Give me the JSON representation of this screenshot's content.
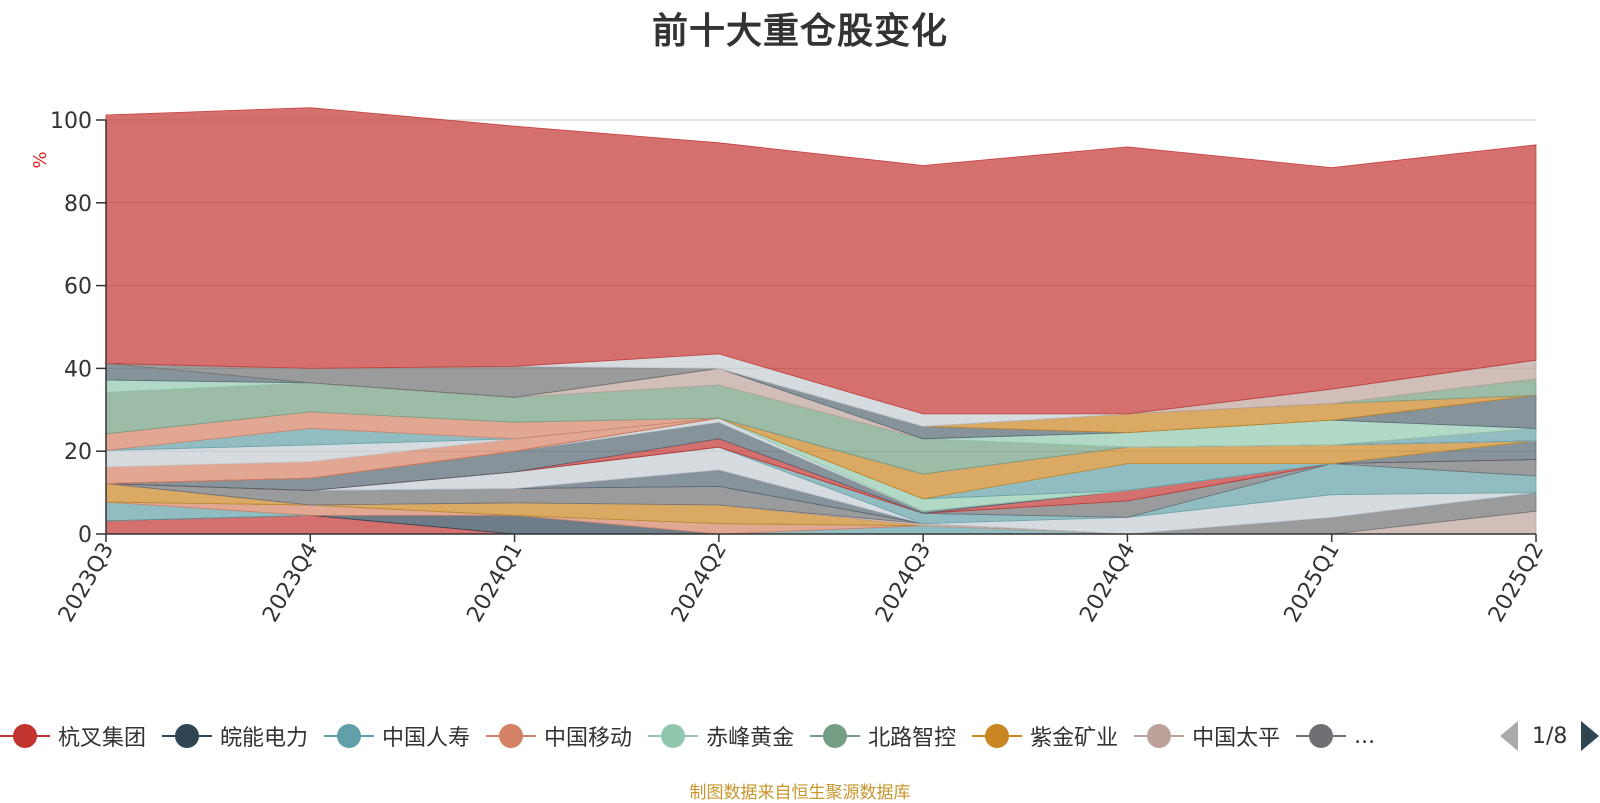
{
  "chart_data": {
    "type": "area",
    "title": "前十大重仓股变化",
    "ylabel": "%",
    "ylim": [
      0,
      100
    ],
    "yticks": [
      0,
      20,
      40,
      60,
      80,
      100
    ],
    "grid": true,
    "stacked": true,
    "legend_position": "bottom",
    "x": [
      "2023Q3",
      "2023Q4",
      "2024Q1",
      "2024Q2",
      "2024Q3",
      "2024Q4",
      "2025Q1",
      "2025Q2"
    ],
    "series": [
      {
        "name": "杭叉集团",
        "color": "#c23531",
        "values": [
          3.2,
          4.5,
          0.0,
          0.0,
          0.0,
          0.0,
          0.0,
          0.0
        ]
      },
      {
        "name": "皖能电力",
        "color": "#2f4554",
        "values": [
          0.0,
          0.0,
          4.5,
          0.0,
          0.0,
          0.0,
          0.0,
          0.0
        ]
      },
      {
        "name": "中国人寿",
        "color": "#61a0a8",
        "values": [
          4.5,
          0.0,
          0.0,
          0.0,
          2.0,
          0.0,
          0.0,
          0.0
        ]
      },
      {
        "name": "中国移动",
        "color": "#d48265",
        "values": [
          0.0,
          2.5,
          0.0,
          2.5,
          0.0,
          0.0,
          0.0,
          0.0
        ]
      },
      {
        "name": "赤峰黄金",
        "color": "#91c7ae",
        "values": [
          0.0,
          0.0,
          0.0,
          0.0,
          0.0,
          0.0,
          0.0,
          0.0
        ]
      },
      {
        "name": "北路智控",
        "color": "#749f83",
        "values": [
          0.0,
          0.0,
          0.0,
          0.0,
          0.0,
          0.0,
          0.0,
          0.0
        ]
      },
      {
        "name": "紫金矿业",
        "color": "#ca8622",
        "values": [
          4.5,
          0.0,
          3.0,
          4.5,
          0.0,
          0.0,
          0.0,
          0.0
        ]
      },
      {
        "name": "中国太平",
        "color": "#bda29a",
        "values": [
          0.0,
          0.0,
          0.0,
          0.0,
          0.5,
          0.0,
          0.0,
          5.5
        ]
      },
      {
        "name": "",
        "color": "#6e7074",
        "values": [
          0.0,
          3.5,
          3.5,
          4.5,
          0.0,
          0.0,
          4.0,
          4.5
        ]
      },
      {
        "name": "",
        "color": "#546570",
        "values": [
          0.0,
          0.0,
          0.0,
          4.0,
          0.0,
          0.0,
          0.0,
          0.0
        ]
      },
      {
        "name": "",
        "color": "#c4ccd3",
        "values": [
          0.0,
          0.0,
          4.0,
          5.5,
          0.0,
          4.0,
          5.5,
          0.0
        ]
      },
      {
        "name": "",
        "color": "#61a0a8",
        "values": [
          0.0,
          0.0,
          0.0,
          0.0,
          2.5,
          0.0,
          7.5,
          4.0
        ]
      },
      {
        "name": "",
        "color": "#6e7074",
        "values": [
          0.0,
          0.0,
          0.0,
          0.0,
          0.0,
          4.0,
          0.0,
          4.0
        ]
      },
      {
        "name": "",
        "color": "#c23531",
        "values": [
          0.0,
          0.0,
          0.0,
          2.0,
          0.0,
          2.5,
          0.0,
          0.0
        ]
      },
      {
        "name": "",
        "color": "#546570",
        "values": [
          0.0,
          3.0,
          5.0,
          4.0,
          0.5,
          0.0,
          0.0,
          4.5
        ]
      },
      {
        "name": "",
        "color": "#c4ccd3",
        "values": [
          0.0,
          0.0,
          0.0,
          1.0,
          0.0,
          0.0,
          0.0,
          0.0
        ]
      },
      {
        "name": "",
        "color": "#91c7ae",
        "values": [
          0.0,
          0.0,
          0.0,
          0.0,
          3.0,
          0.0,
          0.0,
          0.0
        ]
      },
      {
        "name": "",
        "color": "#61a0a8",
        "values": [
          0.0,
          0.0,
          0.0,
          0.0,
          0.0,
          6.5,
          0.0,
          0.0
        ]
      },
      {
        "name": "",
        "color": "#ca8622",
        "values": [
          0.0,
          0.0,
          0.0,
          0.0,
          6.0,
          4.0,
          4.5,
          0.0
        ]
      },
      {
        "name": "",
        "color": "#c23531",
        "values": [
          0.0,
          0.0,
          0.0,
          0.0,
          0.0,
          0.0,
          0.0,
          0.0
        ]
      },
      {
        "name": "",
        "color": "#d48265",
        "values": [
          4.0,
          4.0,
          3.0,
          0.0,
          0.0,
          0.0,
          0.0,
          0.0
        ]
      },
      {
        "name": "",
        "color": "#c4ccd3",
        "values": [
          4.0,
          4.0,
          0.0,
          0.0,
          0.0,
          0.0,
          0.0,
          0.0
        ]
      },
      {
        "name": "",
        "color": "#61a0a8",
        "values": [
          0.0,
          4.0,
          0.0,
          0.0,
          0.0,
          0.0,
          0.0,
          3.0
        ]
      },
      {
        "name": "",
        "color": "#d48265",
        "values": [
          4.0,
          4.0,
          4.0,
          0.0,
          0.0,
          0.0,
          0.0,
          0.0
        ]
      },
      {
        "name": "",
        "color": "#749f83",
        "values": [
          10.0,
          7.0,
          6.0,
          8.0,
          8.5,
          0.0,
          0.0,
          0.0
        ]
      },
      {
        "name": "",
        "color": "#bda29a",
        "values": [
          0.0,
          0.0,
          0.0,
          4.0,
          0.0,
          0.0,
          0.0,
          0.0
        ]
      },
      {
        "name": "",
        "color": "#91c7ae",
        "values": [
          3.0,
          0.0,
          0.0,
          0.0,
          0.0,
          3.5,
          6.0,
          0.0
        ]
      },
      {
        "name": "",
        "color": "#546570",
        "values": [
          4.0,
          0.0,
          0.0,
          0.0,
          3.0,
          0.0,
          0.0,
          8.0
        ]
      },
      {
        "name": "",
        "color": "#ca8622",
        "values": [
          0.0,
          0.0,
          0.0,
          0.0,
          0.0,
          4.5,
          4.0,
          0.0
        ]
      },
      {
        "name": "",
        "color": "#749f83",
        "values": [
          0.0,
          0.0,
          0.0,
          0.0,
          0.0,
          0.0,
          0.0,
          4.0
        ]
      },
      {
        "name": "",
        "color": "#bda29a",
        "values": [
          0.0,
          0.0,
          0.0,
          0.0,
          0.0,
          0.0,
          3.5,
          4.5
        ]
      },
      {
        "name": "",
        "color": "#6e7074",
        "values": [
          0.0,
          3.5,
          7.5,
          0.0,
          0.0,
          0.0,
          0.0,
          0.0
        ]
      },
      {
        "name": "",
        "color": "#c4ccd3",
        "values": [
          0.0,
          0.0,
          0.0,
          3.5,
          3.0,
          0.0,
          0.0,
          0.0
        ]
      },
      {
        "name": "",
        "color": "#c23531",
        "values": [
          60.0,
          63.0,
          58.0,
          51.0,
          60.0,
          64.5,
          53.5,
          52.0
        ]
      }
    ],
    "legend": [
      "杭叉集团",
      "皖能电力",
      "中国人寿",
      "中国移动",
      "赤峰黄金",
      "北路智控",
      "紫金矿业",
      "中国太平",
      "..."
    ],
    "legend_colors": [
      "#c23531",
      "#2f4554",
      "#61a0a8",
      "#d48265",
      "#91c7ae",
      "#749f83",
      "#ca8622",
      "#bda29a",
      "#6e7074"
    ],
    "page_indicator": "1/8",
    "source": "制图数据来自恒生聚源数据库"
  }
}
